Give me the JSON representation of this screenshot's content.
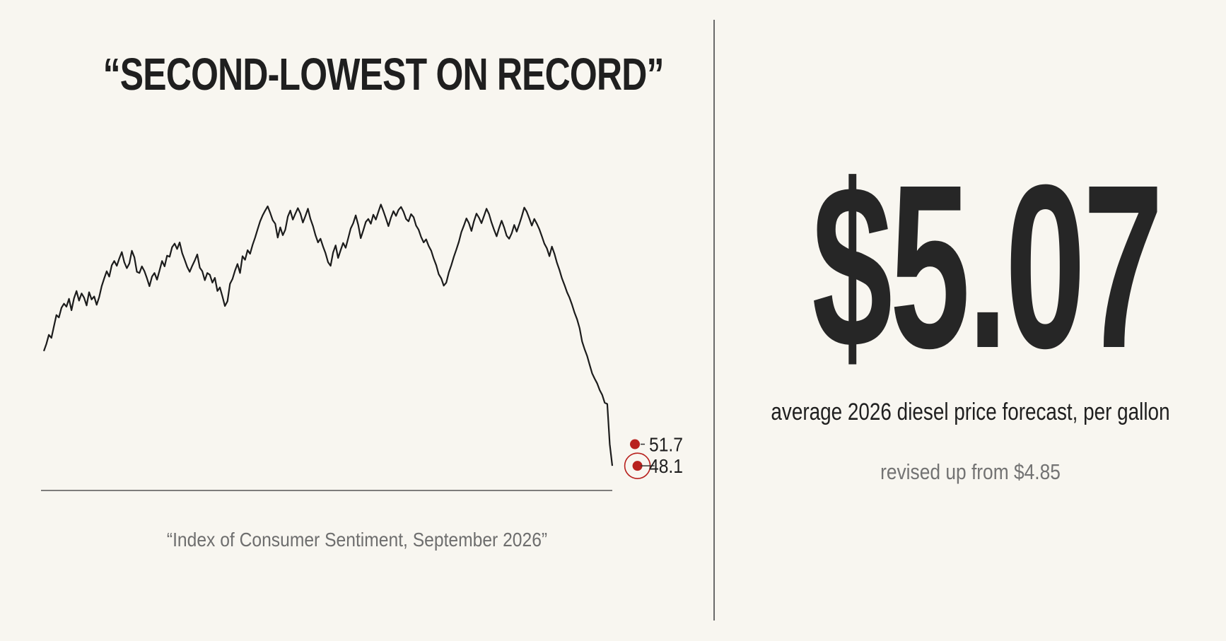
{
  "left": {
    "title": "“SECOND-LOWEST ON RECORD”",
    "caption": "“Index of Consumer Sentiment, September 2026”"
  },
  "right": {
    "value": "$5.07",
    "subtitle": "average 2026 diesel price forecast, per gallon",
    "note": "revised up from $4.85"
  },
  "colors": {
    "line": "#1c1c1c",
    "accent": "#b8211e",
    "baseline": "#555555",
    "background": "#f8f6f0"
  },
  "chart_data": {
    "type": "line",
    "title": "“SECOND-LOWEST ON RECORD”",
    "xlabel": "",
    "ylabel": "",
    "grid": false,
    "ylim": [
      44,
      100
    ],
    "series": [
      {
        "values": [
          67.2,
          68.4,
          69.9,
          69.4,
          71.3,
          73.2,
          72.8,
          74.4,
          75.1,
          74.6,
          75.9,
          74.0,
          76.0,
          77.2,
          75.6,
          76.8,
          76.1,
          74.8,
          77.0,
          75.8,
          76.3,
          74.9,
          76.2,
          78.0,
          79.3,
          80.5,
          79.6,
          81.5,
          82.2,
          81.4,
          82.6,
          83.7,
          82.0,
          81.0,
          81.8,
          83.9,
          82.8,
          80.4,
          80.2,
          81.3,
          80.5,
          79.3,
          78.0,
          79.6,
          80.2,
          79.1,
          80.6,
          82.2,
          81.3,
          83.1,
          82.9,
          84.5,
          85.1,
          84.2,
          85.3,
          83.5,
          82.4,
          81.2,
          80.4,
          81.4,
          82.3,
          83.3,
          81.1,
          80.5,
          79.0,
          80.2,
          79.9,
          78.6,
          79.4,
          77.2,
          77.8,
          76.3,
          74.7,
          75.5,
          78.4,
          79.2,
          80.6,
          81.7,
          80.2,
          83.0,
          82.4,
          84.0,
          83.4,
          84.9,
          86.1,
          87.5,
          88.8,
          89.8,
          90.6,
          91.3,
          90.2,
          89.0,
          88.4,
          86.1,
          87.8,
          86.5,
          87.4,
          89.6,
          90.6,
          89.1,
          90.1,
          91.0,
          90.1,
          88.6,
          89.7,
          90.9,
          89.2,
          88.0,
          86.5,
          85.3,
          85.9,
          84.6,
          83.5,
          82.0,
          81.4,
          83.6,
          84.8,
          82.7,
          84.0,
          85.2,
          84.4,
          86.0,
          87.6,
          88.5,
          89.8,
          88.2,
          86.0,
          87.3,
          88.7,
          89.2,
          88.4,
          89.9,
          89.1,
          90.4,
          91.6,
          90.5,
          89.3,
          88.0,
          89.4,
          90.5,
          89.7,
          90.7,
          91.2,
          90.4,
          89.2,
          88.8,
          90.0,
          89.5,
          88.1,
          87.4,
          86.2,
          85.3,
          85.8,
          84.7,
          83.9,
          82.6,
          81.5,
          80.0,
          79.3,
          78.1,
          78.6,
          80.3,
          81.5,
          82.9,
          84.1,
          85.4,
          87.0,
          88.1,
          89.3,
          88.5,
          87.2,
          88.8,
          90.1,
          89.4,
          88.5,
          89.7,
          90.9,
          90.0,
          88.6,
          87.4,
          86.3,
          87.7,
          88.9,
          87.8,
          86.4,
          85.9,
          86.8,
          88.2,
          87.1,
          88.3,
          89.6,
          91.1,
          90.4,
          89.3,
          88.1,
          89.2,
          88.4,
          87.5,
          86.3,
          85.1,
          84.3,
          83.0,
          84.6,
          83.4,
          81.9,
          80.7,
          79.3,
          78.2,
          77.0,
          76.1,
          74.9,
          73.6,
          72.5,
          71.0,
          68.8,
          67.5,
          66.4,
          64.9,
          63.5,
          62.6,
          61.8,
          60.7,
          59.9,
          58.6,
          58.4,
          51.7,
          48.1
        ]
      }
    ],
    "annotations": [
      {
        "index": 235,
        "value": 51.7,
        "label": "51.7"
      },
      {
        "index": 236,
        "value": 48.1,
        "label": "48.1"
      }
    ]
  }
}
